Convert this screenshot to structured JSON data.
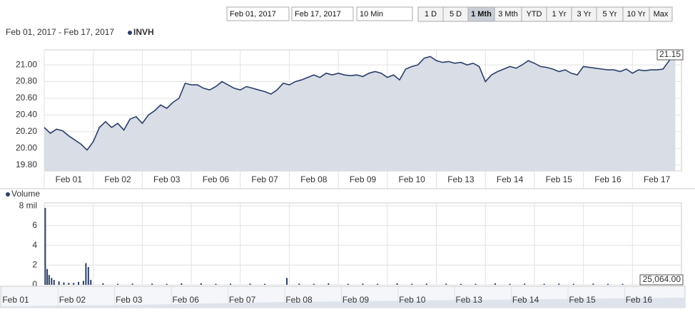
{
  "controls": {
    "start_date": "Feb 01, 2017",
    "end_date": "Feb 17, 2017",
    "interval": "10 Min",
    "ranges": [
      "1 D",
      "5 D",
      "1 Mth",
      "3 Mth",
      "YTD",
      "1 Yr",
      "3 Yr",
      "5 Yr",
      "10 Yr",
      "Max"
    ],
    "active_range": 2
  },
  "chart_data": [
    {
      "type": "area",
      "subtitle": "Feb 01, 2017 - Feb 17, 2017",
      "xlim": [
        0,
        13
      ],
      "xticks": [
        {
          "value": 0,
          "label": "Feb 01"
        },
        {
          "value": 1,
          "label": "Feb 02"
        },
        {
          "value": 2,
          "label": "Feb 03"
        },
        {
          "value": 3,
          "label": "Feb 06"
        },
        {
          "value": 4,
          "label": "Feb 07"
        },
        {
          "value": 5,
          "label": "Feb 08"
        },
        {
          "value": 6,
          "label": "Feb 09"
        },
        {
          "value": 7,
          "label": "Feb 10"
        },
        {
          "value": 8,
          "label": "Feb 13"
        },
        {
          "value": 9,
          "label": "Feb 14"
        },
        {
          "value": 10,
          "label": "Feb 15"
        },
        {
          "value": 11,
          "label": "Feb 16"
        },
        {
          "value": 12,
          "label": "Feb 17"
        }
      ],
      "ylim": [
        19.73,
        21.18
      ],
      "yticks": [
        {
          "value": 19.8,
          "label": "19.80"
        },
        {
          "value": 20.0,
          "label": "20.00"
        },
        {
          "value": 20.2,
          "label": "20.20"
        },
        {
          "value": 20.4,
          "label": "20.40"
        },
        {
          "value": 20.6,
          "label": "20.60"
        },
        {
          "value": 20.8,
          "label": "20.80"
        },
        {
          "value": 21.0,
          "label": "21.00"
        }
      ],
      "grid": true,
      "x": [
        0,
        0.125,
        0.25,
        0.375,
        0.5,
        0.625,
        0.75,
        0.875,
        1,
        1.125,
        1.25,
        1.375,
        1.5,
        1.625,
        1.75,
        1.875,
        2,
        2.125,
        2.25,
        2.375,
        2.5,
        2.625,
        2.75,
        2.875,
        3,
        3.125,
        3.25,
        3.375,
        3.5,
        3.625,
        3.75,
        3.875,
        4,
        4.125,
        4.25,
        4.375,
        4.5,
        4.625,
        4.75,
        4.875,
        5,
        5.125,
        5.25,
        5.375,
        5.5,
        5.625,
        5.75,
        5.875,
        6,
        6.125,
        6.25,
        6.375,
        6.5,
        6.625,
        6.75,
        6.875,
        7,
        7.125,
        7.25,
        7.375,
        7.5,
        7.625,
        7.75,
        7.875,
        8,
        8.125,
        8.25,
        8.375,
        8.5,
        8.625,
        8.75,
        8.875,
        9,
        9.125,
        9.25,
        9.375,
        9.5,
        9.625,
        9.75,
        9.875,
        10,
        10.125,
        10.25,
        10.375,
        10.5,
        10.625,
        10.75,
        10.875,
        11,
        11.125,
        11.25,
        11.375,
        11.5,
        11.625,
        11.75,
        11.875,
        12,
        12.125,
        12.25,
        12.375,
        12.5,
        12.625,
        12.75,
        12.875
      ],
      "series": [
        {
          "name": "INVH",
          "color": "#2b3f6b",
          "values": [
            20.25,
            20.18,
            20.23,
            20.21,
            20.15,
            20.1,
            20.05,
            19.98,
            20.08,
            20.25,
            20.32,
            20.25,
            20.3,
            20.22,
            20.35,
            20.38,
            20.3,
            20.4,
            20.45,
            20.52,
            20.48,
            20.55,
            20.6,
            20.78,
            20.76,
            20.76,
            20.72,
            20.7,
            20.74,
            20.8,
            20.76,
            20.72,
            20.7,
            20.74,
            20.72,
            20.7,
            20.68,
            20.65,
            20.7,
            20.78,
            20.76,
            20.8,
            20.82,
            20.85,
            20.88,
            20.85,
            20.9,
            20.88,
            20.9,
            20.88,
            20.87,
            20.88,
            20.86,
            20.9,
            20.92,
            20.9,
            20.85,
            20.88,
            20.82,
            20.95,
            20.98,
            21.0,
            21.08,
            21.1,
            21.05,
            21.03,
            21.04,
            21.02,
            21.03,
            21.0,
            21.02,
            20.98,
            20.8,
            20.88,
            20.92,
            20.95,
            20.98,
            20.96,
            21.0,
            21.05,
            21.02,
            20.98,
            20.97,
            20.95,
            20.92,
            20.94,
            20.9,
            20.88,
            20.98,
            20.97,
            20.96,
            20.95,
            20.94,
            20.94,
            20.92,
            20.95,
            20.9,
            20.94,
            20.93,
            20.94,
            20.94,
            20.95,
            21.05,
            21.15
          ]
        }
      ]
    },
    {
      "type": "bar",
      "xlim": [
        0,
        13
      ],
      "xticks": [
        0,
        1,
        2,
        3,
        4,
        5,
        6,
        7,
        8,
        9,
        10,
        11,
        12
      ],
      "ylim": [
        0,
        8.3
      ],
      "yticks": [
        0,
        2,
        4,
        6,
        {
          "value": 8,
          "label": "8 mil"
        }
      ],
      "grid": true,
      "x": [
        0.02,
        0.06,
        0.1,
        0.15,
        0.2,
        0.3,
        0.4,
        0.5,
        0.6,
        0.7,
        0.8,
        0.85,
        0.9,
        0.95,
        1.2,
        1.5,
        1.8,
        2.2,
        2.5,
        2.8,
        3.2,
        3.5,
        3.8,
        4.2,
        4.5,
        4.95,
        5.2,
        5.5,
        5.8,
        6.2,
        6.5,
        6.8,
        7.2,
        7.5,
        7.8,
        8.2,
        8.5,
        8.8,
        9.2,
        9.5,
        9.8,
        10.2,
        10.5,
        10.8,
        11.2,
        11.5,
        11.8,
        12.2,
        12.5,
        12.95
      ],
      "series": [
        {
          "name": "Volume",
          "color": "#2b3f6b",
          "values": [
            7.8,
            1.6,
            1.0,
            0.7,
            0.5,
            0.35,
            0.25,
            0.2,
            0.2,
            0.3,
            0.4,
            2.2,
            1.8,
            0.5,
            0.15,
            0.1,
            0.12,
            0.12,
            0.1,
            0.15,
            0.15,
            0.1,
            0.12,
            0.12,
            0.1,
            0.7,
            0.12,
            0.1,
            0.15,
            0.1,
            0.12,
            0.1,
            0.15,
            0.1,
            0.12,
            0.12,
            0.1,
            0.1,
            0.15,
            0.1,
            0.12,
            0.1,
            0.12,
            0.1,
            0.12,
            0.1,
            0.1,
            0.1,
            0.12,
            0.025064
          ],
          "value_labels": [
            null,
            null,
            null,
            null,
            null,
            null,
            null,
            null,
            null,
            null,
            null,
            null,
            null,
            null,
            null,
            null,
            null,
            null,
            null,
            null,
            null,
            null,
            null,
            null,
            null,
            null,
            null,
            null,
            null,
            null,
            null,
            null,
            null,
            null,
            null,
            null,
            null,
            null,
            null,
            null,
            null,
            null,
            null,
            null,
            null,
            null,
            null,
            null,
            null,
            "25,064.00"
          ]
        }
      ]
    }
  ],
  "navigator": {
    "labels": [
      "Feb 01",
      "Feb 02",
      "Feb 03",
      "Feb 06",
      "Feb 07",
      "Feb 08",
      "Feb 09",
      "Feb 10",
      "Feb 13",
      "Feb 14",
      "Feb 15",
      "Feb 16"
    ]
  }
}
